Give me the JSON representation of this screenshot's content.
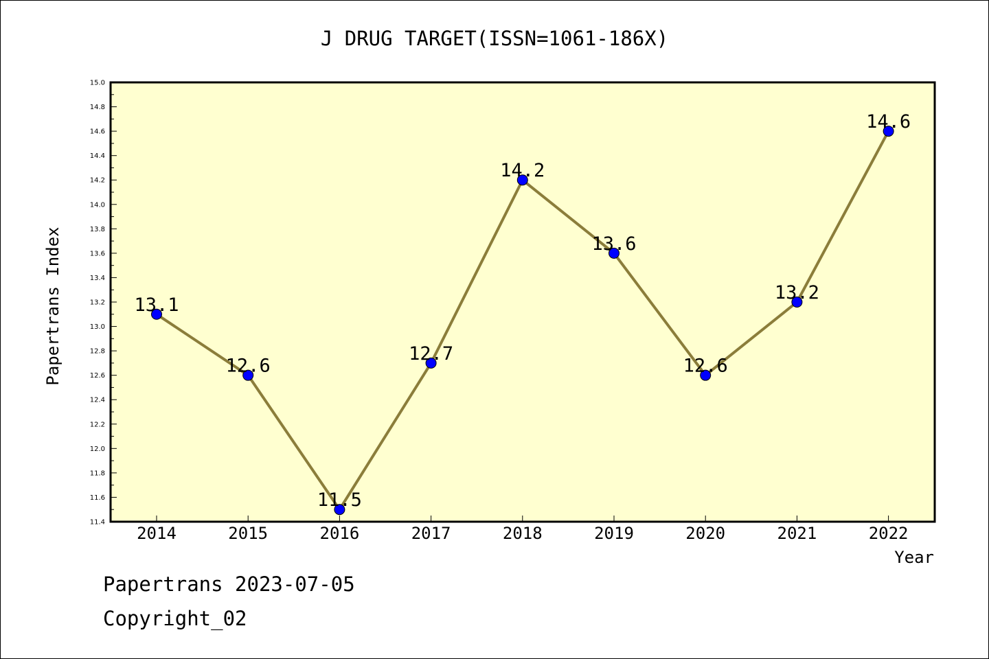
{
  "chart_data": {
    "type": "line",
    "title": "J DRUG TARGET(ISSN=1061-186X)",
    "xlabel": "Year",
    "ylabel": "Papertrans Index",
    "categories": [
      "2014",
      "2015",
      "2016",
      "2017",
      "2018",
      "2019",
      "2020",
      "2021",
      "2022"
    ],
    "series": [
      {
        "values": [
          13.1,
          12.6,
          11.5,
          12.7,
          14.2,
          13.6,
          12.6,
          13.2,
          14.6
        ],
        "data_labels": [
          "13.1",
          "12.6",
          "11.5",
          "12.7",
          "14.2",
          "13.6",
          "12.6",
          "13.2",
          "14.6"
        ]
      }
    ],
    "ylim": [
      11.4,
      15.0
    ],
    "yticks": [
      "11.4",
      "11.6",
      "11.8",
      "12.0",
      "12.2",
      "12.4",
      "12.6",
      "12.8",
      "13.0",
      "13.2",
      "13.4",
      "13.6",
      "13.8",
      "14.0",
      "14.2",
      "14.4",
      "14.6",
      "14.8",
      "15.0"
    ],
    "grid": false,
    "colors": {
      "plot_background": "#ffffd0",
      "line": "#8b7d3a",
      "marker": "#0000ff"
    }
  },
  "footer": {
    "line1": "Papertrans 2023-07-05",
    "line2": "Copyright_02"
  }
}
